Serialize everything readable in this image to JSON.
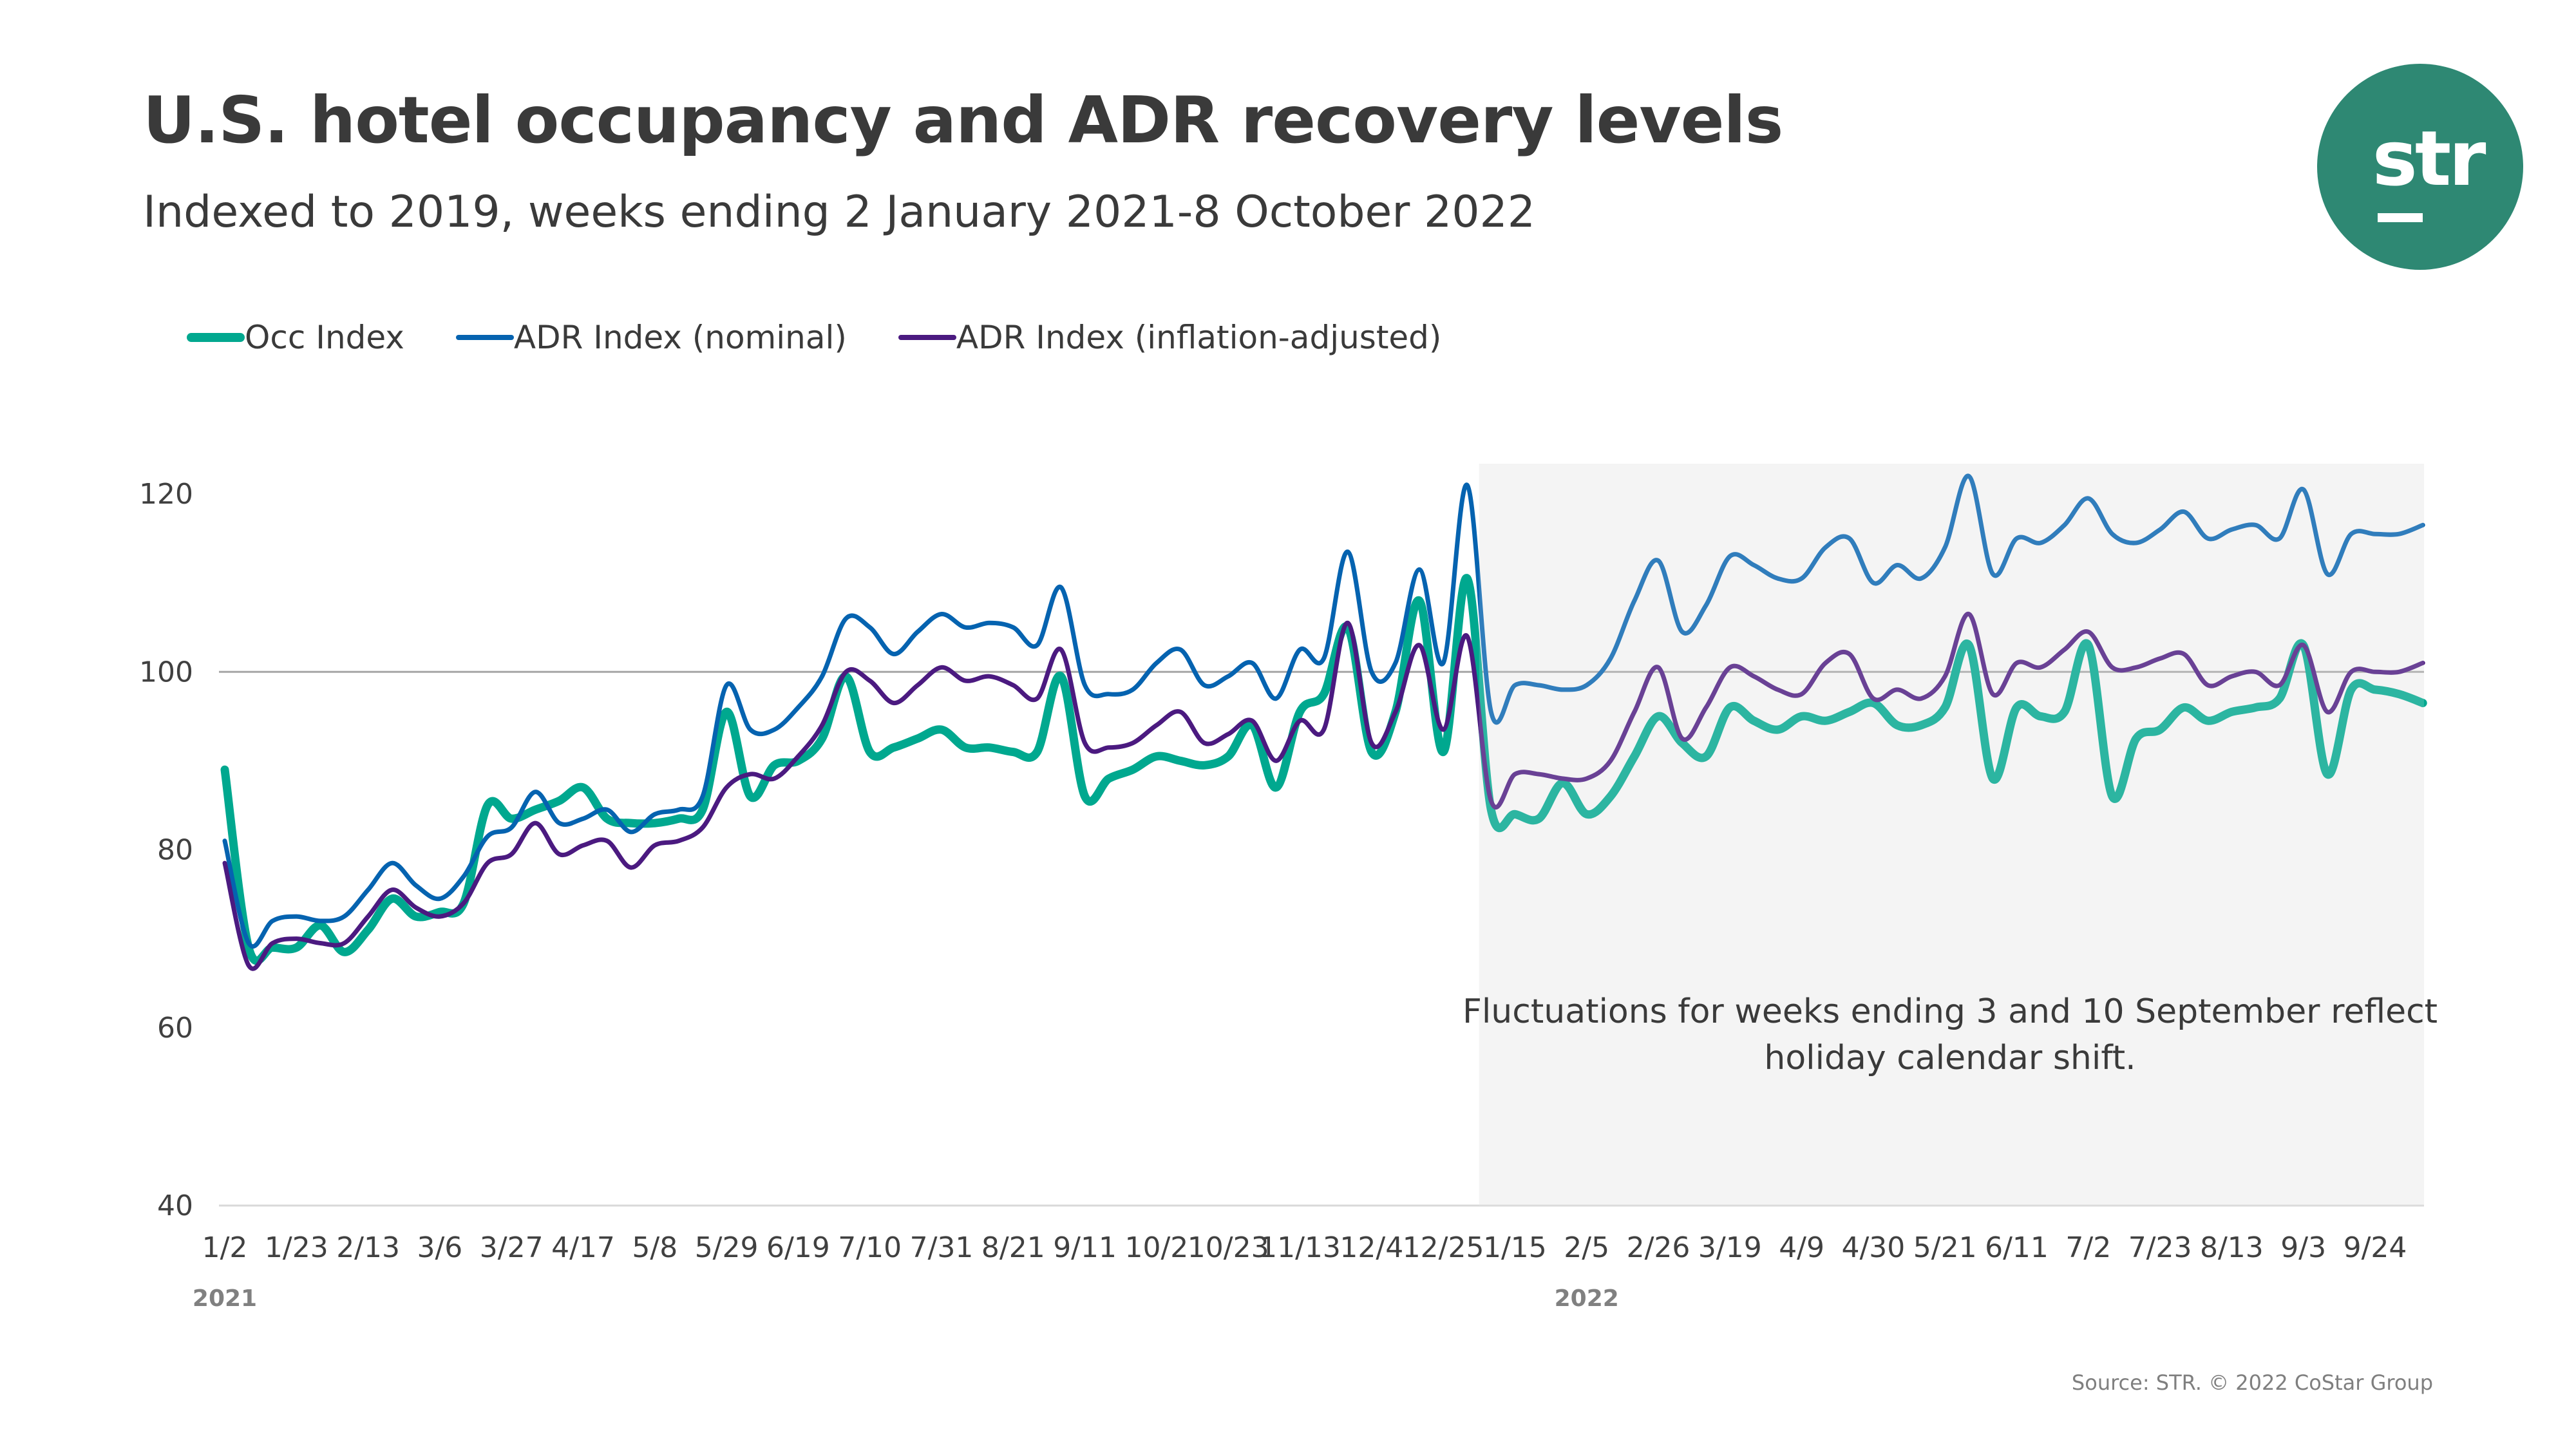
{
  "header": {
    "title": "U.S. hotel occupancy and ADR recovery levels",
    "subtitle": "Indexed to 2019, weeks ending 2 January 2021-8 October 2022"
  },
  "logo": {
    "text": "str",
    "color": "#2E8873"
  },
  "source": "Source: STR. © 2022 CoStar Group",
  "chart_data": {
    "type": "line",
    "title": "U.S. hotel occupancy and ADR recovery levels",
    "subtitle": "Indexed to 2019, weeks ending 2 January 2021-8 October 2022",
    "ylim": [
      40,
      120
    ],
    "y_ticks": [
      "40",
      "60",
      "80",
      "100",
      "120"
    ],
    "reference_line": 100,
    "grid": false,
    "legend_position": "top-left",
    "x_tick_labels": [
      "1/2",
      "1/23",
      "2/13",
      "3/6",
      "3/27",
      "4/17",
      "5/8",
      "5/29",
      "6/19",
      "7/10",
      "7/31",
      "8/21",
      "9/11",
      "10/2",
      "10/23",
      "11/13",
      "12/4",
      "12/25",
      "1/15",
      "2/5",
      "2/26",
      "3/19",
      "4/9",
      "4/30",
      "5/21",
      "6/11",
      "7/2",
      "7/23",
      "8/13",
      "9/3",
      "9/24"
    ],
    "x_tick_every_weeks": 3,
    "year_labels": [
      {
        "label": "2021",
        "tick": "1/2"
      },
      {
        "label": "2022",
        "tick": "2/5"
      }
    ],
    "x_range": [
      "2021-01-02",
      "2022-10-08"
    ],
    "x_frequency": "weekly",
    "highlight_region": {
      "from": "2022-01-08",
      "to": "2022-10-08",
      "color": "#F5F5F5"
    },
    "annotation": [
      "Fluctuations for weeks ending 3 and 10 September reflect",
      "holiday calendar shift."
    ],
    "series": [
      {
        "name": "Occ Index",
        "color": "#00A88F",
        "values": [
          89,
          69,
          69,
          69,
          71.5,
          68.5,
          71,
          74.5,
          72.5,
          73,
          74,
          85,
          83.5,
          84.5,
          85.5,
          87,
          83.5,
          83,
          83,
          83.5,
          84.5,
          95.5,
          86,
          89.5,
          90,
          92.5,
          99.5,
          91,
          91.5,
          92.5,
          93.5,
          91.5,
          91.5,
          91,
          91,
          99.5,
          86,
          88,
          89,
          90.5,
          90,
          89.5,
          90.5,
          94,
          87,
          95.5,
          97.5,
          105,
          91,
          95.5,
          108,
          91,
          110.5,
          84.5,
          84,
          83.5,
          87.5,
          84,
          86,
          90.5,
          95,
          92,
          90.5,
          96,
          94.5,
          93.5,
          95,
          94.5,
          95.5,
          96.5,
          94,
          94,
          96,
          103,
          88,
          96,
          95,
          95.5,
          103,
          86,
          92.5,
          93.5,
          96,
          94.5,
          95.5,
          96,
          97,
          103,
          88.5,
          98,
          98,
          97.5,
          96.5
        ]
      },
      {
        "name": "ADR Index (nominal)",
        "color": "#0563B0",
        "values": [
          81,
          69.5,
          72,
          72.5,
          72,
          72.5,
          75.5,
          78.5,
          76,
          74.5,
          77,
          81.5,
          82.5,
          86.5,
          83,
          83.5,
          84.5,
          82,
          84,
          84.5,
          86,
          98.5,
          93.5,
          93.5,
          96,
          99.5,
          106,
          105,
          102,
          104.5,
          106.5,
          105,
          105.5,
          105,
          103,
          109.5,
          98.5,
          97.5,
          98,
          101,
          102.5,
          98.5,
          99.5,
          101,
          97,
          102.5,
          101.5,
          113.5,
          100,
          101,
          111.5,
          101,
          121,
          95.5,
          98.5,
          98.5,
          98,
          98.5,
          101.5,
          108,
          112.5,
          104.5,
          107.5,
          113,
          112,
          110.5,
          110.5,
          114,
          115,
          110,
          112,
          110.5,
          114,
          122,
          111,
          115,
          114.5,
          116.5,
          119.5,
          115.5,
          114.5,
          116,
          118,
          115,
          116,
          116.5,
          115,
          120.5,
          111,
          115.5,
          115.5,
          115.5,
          116.5
        ]
      },
      {
        "name": "ADR Index (inflation-adjusted)",
        "color": "#4B1A80",
        "values": [
          78.5,
          67,
          69.5,
          70,
          69.5,
          69.5,
          72.5,
          75.5,
          73.5,
          72.5,
          74,
          78.5,
          79.5,
          83,
          79.5,
          80.5,
          81,
          78,
          80.5,
          81,
          82.5,
          87,
          88.5,
          88,
          90.5,
          94,
          100,
          99,
          96.5,
          98.5,
          100.5,
          99,
          99.5,
          98.5,
          97,
          102.5,
          92,
          91.5,
          92,
          94,
          95.5,
          92,
          93,
          94.5,
          90,
          94.5,
          93.5,
          105.5,
          92,
          95.5,
          103,
          93.5,
          104,
          85.5,
          88.5,
          88.5,
          88,
          88,
          90,
          95.5,
          100.5,
          92.5,
          96,
          100.5,
          99.5,
          98,
          97.5,
          101,
          102,
          97,
          98,
          97,
          99.5,
          106.5,
          97.5,
          101,
          100.5,
          102.5,
          104.5,
          100.5,
          100.5,
          101.5,
          102,
          98.5,
          99.5,
          100,
          98.5,
          103,
          95.5,
          100,
          100,
          100,
          101
        ]
      }
    ]
  }
}
